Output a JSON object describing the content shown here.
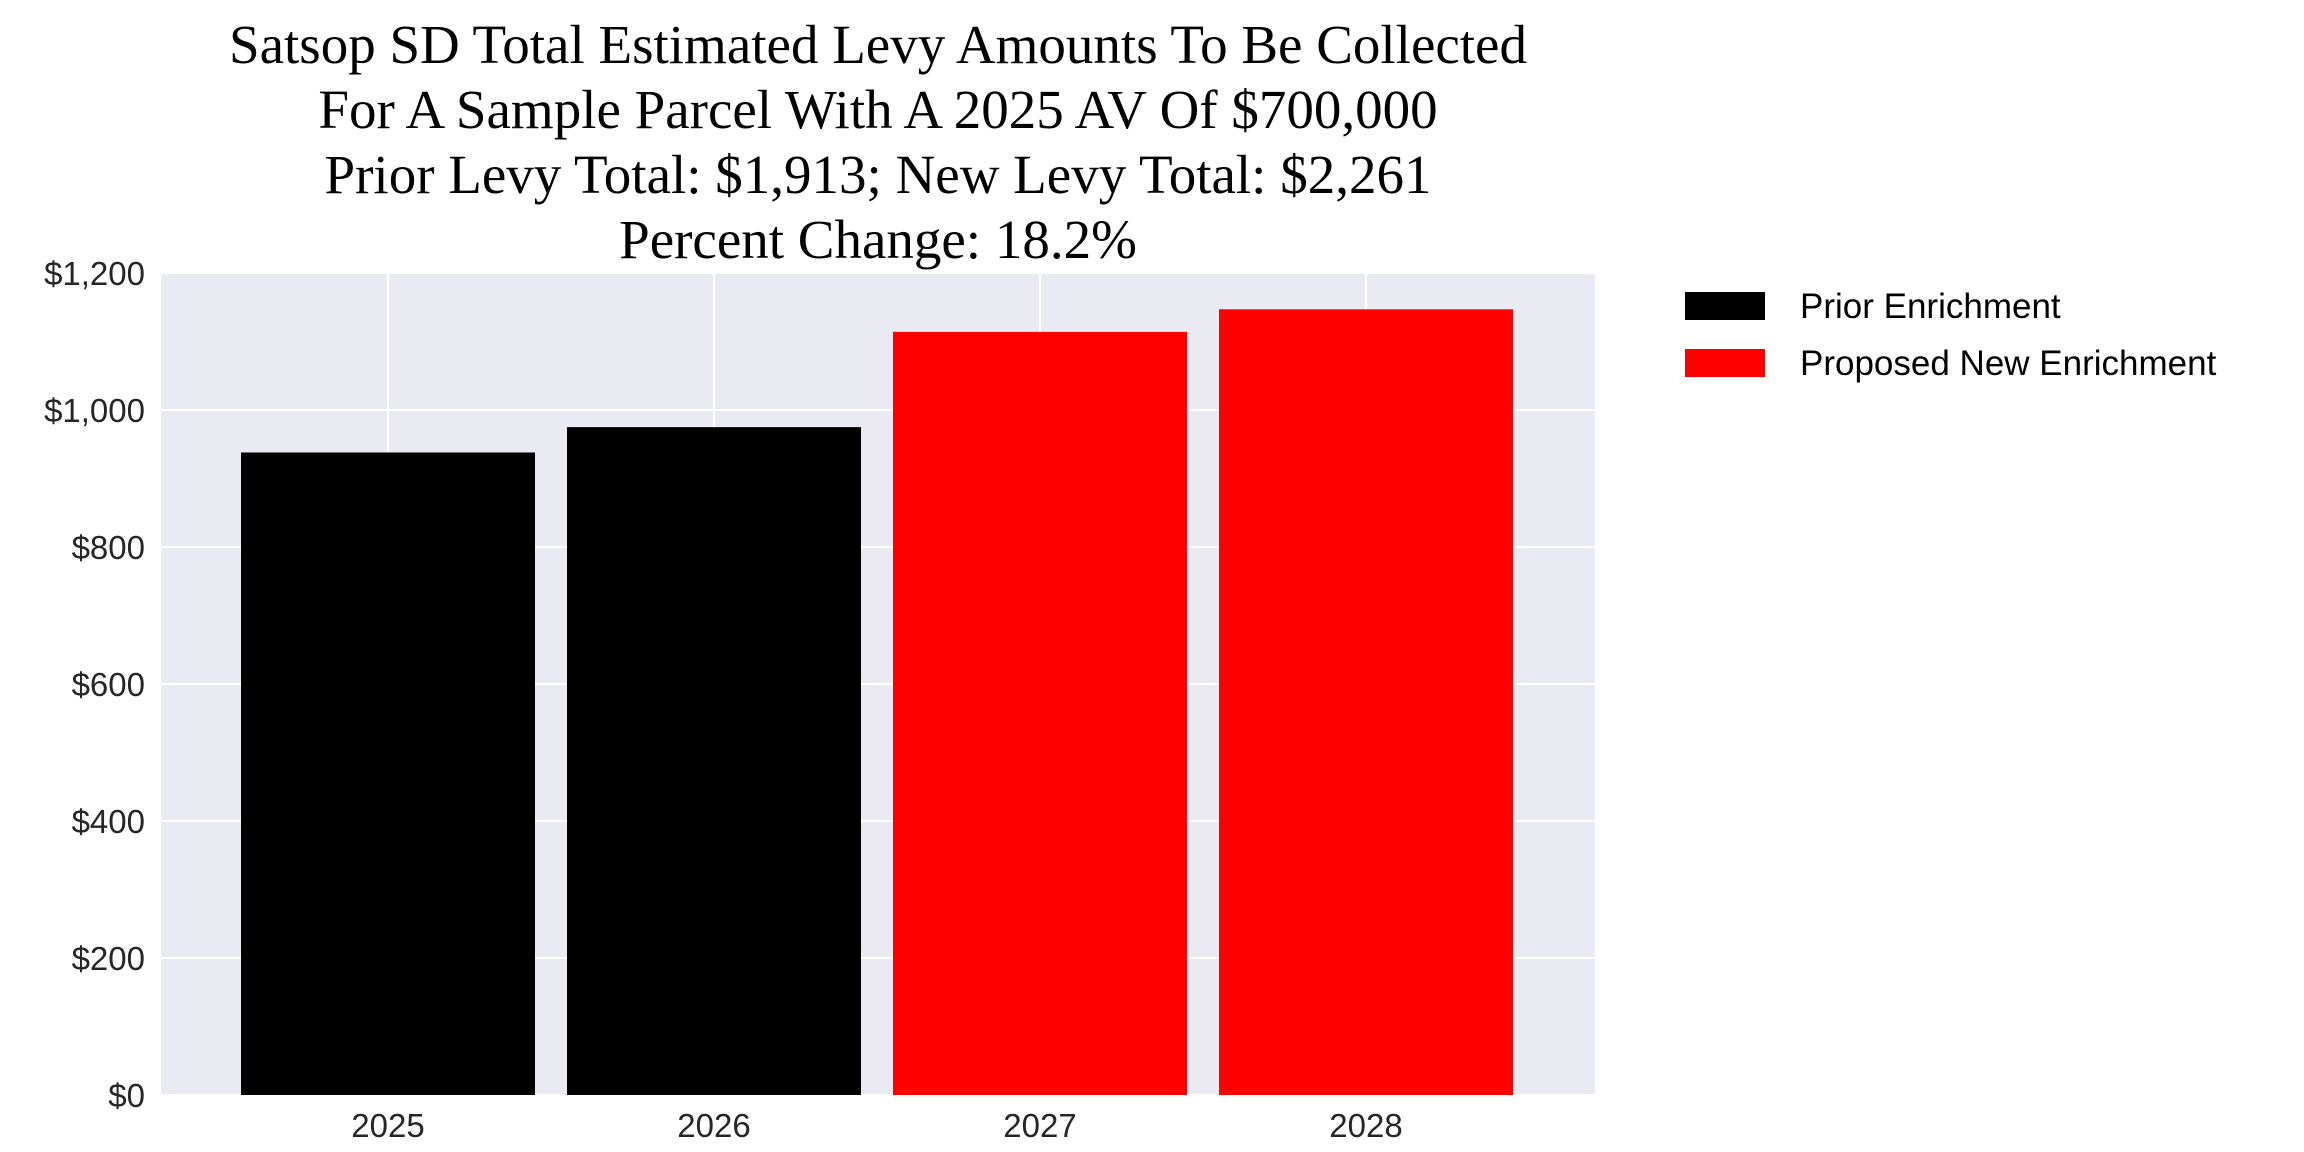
{
  "chart_data": {
    "type": "bar",
    "title": [
      "Satsop SD Total Estimated Levy Amounts To Be Collected",
      "For A Sample Parcel With A 2025 AV Of $700,000",
      "Prior Levy Total:  $1,913; New Levy Total: $2,261",
      "Percent Change: 18.2%"
    ],
    "xlabel": "",
    "ylabel": "",
    "categories": [
      "2025",
      "2026",
      "2027",
      "2028"
    ],
    "values": [
      938,
      975,
      1114,
      1147
    ],
    "bar_series": [
      "Prior Enrichment",
      "Prior Enrichment",
      "Proposed New Enrichment",
      "Proposed New Enrichment"
    ],
    "series": [
      {
        "name": "Prior Enrichment",
        "color": "#000000"
      },
      {
        "name": "Proposed New Enrichment",
        "color": "#ff0000"
      }
    ],
    "ylim": [
      0,
      1200
    ],
    "yticks": [
      0,
      200,
      400,
      600,
      800,
      1000,
      1200
    ],
    "ytick_labels": [
      "$0",
      "$200",
      "$400",
      "$600",
      "$800",
      "$1,000",
      "$1,200"
    ],
    "grid": true,
    "background": "#eaeaf2",
    "legend_placement": "outside-top-right"
  }
}
